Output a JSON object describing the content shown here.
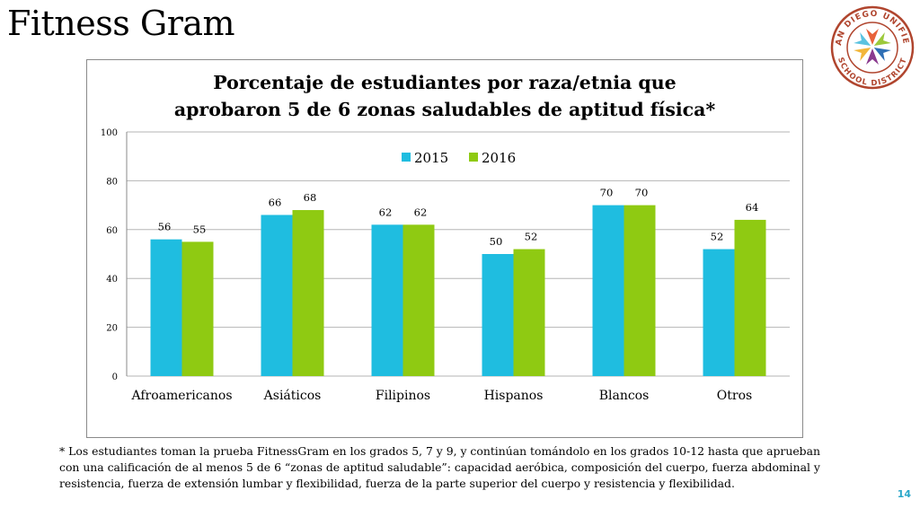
{
  "slide": {
    "title": "Fitness Gram",
    "footnote": "* Los estudiantes toman la prueba FitnessGram en los grados 5, 7 y 9, y continúan tomándolo en los grados 10-12 hasta que aprueban con una calificación de al menos 5 de 6 “zonas de aptitud saludable”: capacidad aeróbica,  composición del cuerpo, fuerza abdominal y resistencia, fuerza de extensión lumbar y flexibilidad, fuerza de la parte superior del cuerpo y resistencia y flexibilidad.",
    "page_number": "14"
  },
  "logo": {
    "top_text": "SAN DIEGO UNIFIED",
    "bottom_text": "SCHOOL DISTRICT",
    "ring_color": "#b0452e",
    "star_colors": [
      "#e8623a",
      "#9cc93b",
      "#2f6fb5",
      "#8b3a8f",
      "#f2b63a",
      "#5bc3e0"
    ]
  },
  "chart_data": {
    "type": "bar",
    "title_lines": [
      "Porcentaje de estudiantes por raza/etnia que",
      "aprobaron 5 de 6 zonas saludables de aptitud física*"
    ],
    "categories": [
      "Afroamericanos",
      "Asiáticos",
      "Filipinos",
      "Hispanos",
      "Blancos",
      "Otros"
    ],
    "series": [
      {
        "name": "2015",
        "color": "#1fbde0",
        "values": [
          56,
          66,
          62,
          50,
          70,
          52
        ]
      },
      {
        "name": "2016",
        "color": "#8fca12",
        "values": [
          55,
          68,
          62,
          52,
          70,
          64
        ]
      }
    ],
    "ylim": [
      0,
      100
    ],
    "yticks": [
      0,
      20,
      40,
      60,
      80,
      100
    ],
    "grid": true,
    "legend_position": "top-center",
    "xlabel": "",
    "ylabel": ""
  }
}
